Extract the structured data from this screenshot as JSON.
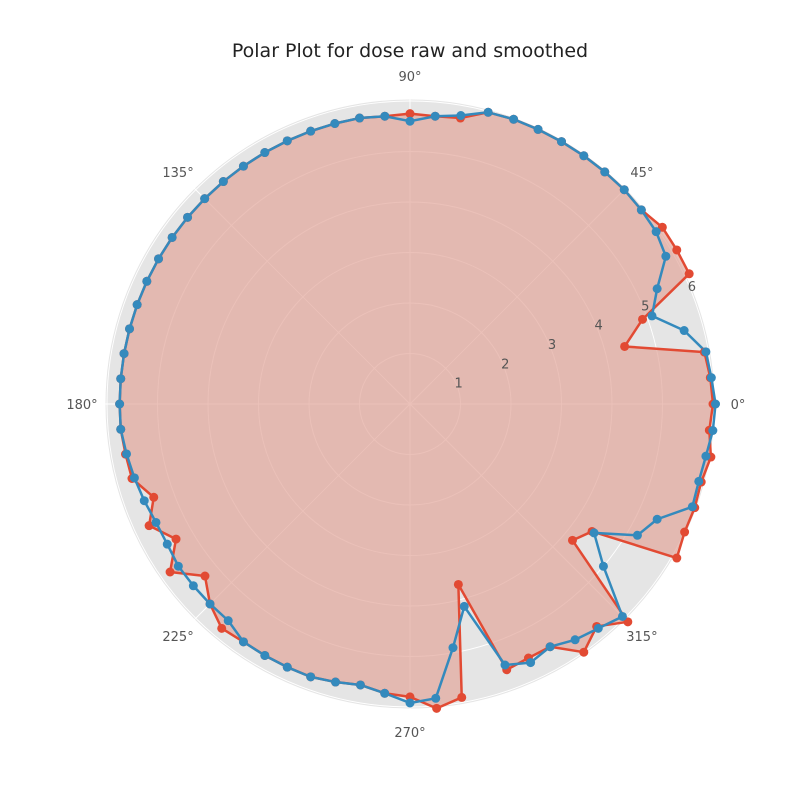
{
  "chart_data": {
    "type": "polar-line",
    "title": "Polar Plot for dose raw and smoothed",
    "theta_unit": "degrees",
    "theta_ticks": [
      "0°",
      "45°",
      "90°",
      "135°",
      "180°",
      "225°",
      "270°",
      "315°"
    ],
    "r_ticks": [
      "1",
      "2",
      "3",
      "4",
      "5",
      "6"
    ],
    "r_lim": [
      0,
      6
    ],
    "grid": true,
    "colors": {
      "background": "#e5e5e5",
      "grid": "#ffffff",
      "fill": "#e2a79b",
      "raw": "#e24a33",
      "smoothed": "#348abd"
    },
    "series": [
      {
        "key": "raw",
        "marker": "circle",
        "fill": true,
        "theta": [
          0,
          5,
          10,
          15,
          20,
          25,
          30,
          35,
          40,
          45,
          50,
          55,
          60,
          65,
          70,
          75,
          80,
          85,
          90,
          95,
          100,
          105,
          110,
          115,
          120,
          125,
          130,
          135,
          140,
          145,
          150,
          155,
          160,
          165,
          170,
          175,
          180,
          185,
          190,
          195,
          200,
          205,
          210,
          215,
          220,
          225,
          230,
          235,
          240,
          245,
          250,
          255,
          260,
          265,
          270,
          275,
          280,
          285,
          290,
          295,
          300,
          305,
          310,
          315,
          320,
          325,
          330,
          335,
          340,
          345,
          350,
          355
        ],
        "r": [
          6.0,
          5.97,
          5.92,
          4.4,
          4.9,
          6.1,
          6.15,
          6.1,
          5.98,
          6.0,
          6.0,
          6.0,
          6.0,
          6.0,
          6.0,
          5.98,
          5.75,
          5.72,
          5.75,
          5.72,
          5.75,
          5.75,
          5.75,
          5.75,
          5.75,
          5.75,
          5.75,
          5.75,
          5.75,
          5.75,
          5.75,
          5.75,
          5.75,
          5.75,
          5.75,
          5.75,
          5.75,
          5.75,
          5.72,
          5.7,
          5.4,
          5.7,
          5.35,
          5.8,
          5.3,
          5.6,
          5.8,
          5.75,
          5.75,
          5.75,
          5.75,
          5.7,
          5.65,
          5.75,
          5.8,
          6.05,
          5.9,
          3.7,
          5.6,
          5.55,
          5.55,
          6.0,
          5.75,
          6.35,
          4.2,
          4.4,
          6.2,
          6.0,
          6.0,
          5.97,
          6.05,
          5.95
        ]
      },
      {
        "key": "smoothed",
        "marker": "circle",
        "fill": false,
        "theta": [
          0,
          5,
          10,
          15,
          20,
          25,
          30,
          35,
          40,
          45,
          50,
          55,
          60,
          65,
          70,
          75,
          80,
          85,
          90,
          95,
          100,
          105,
          110,
          115,
          120,
          125,
          130,
          135,
          140,
          145,
          150,
          155,
          160,
          165,
          170,
          175,
          180,
          185,
          190,
          195,
          200,
          205,
          210,
          215,
          220,
          225,
          230,
          235,
          240,
          245,
          250,
          255,
          260,
          265,
          270,
          275,
          280,
          285,
          290,
          295,
          300,
          305,
          310,
          315,
          320,
          325,
          330,
          335,
          340,
          345,
          350,
          355
        ],
        "r": [
          6.05,
          5.99,
          5.95,
          5.62,
          5.1,
          5.4,
          5.85,
          5.95,
          5.98,
          6.0,
          6.0,
          6.0,
          6.0,
          6.0,
          6.0,
          5.98,
          5.8,
          5.72,
          5.6,
          5.72,
          5.75,
          5.75,
          5.75,
          5.75,
          5.75,
          5.75,
          5.75,
          5.75,
          5.75,
          5.75,
          5.75,
          5.75,
          5.75,
          5.75,
          5.75,
          5.75,
          5.75,
          5.75,
          5.7,
          5.65,
          5.6,
          5.55,
          5.55,
          5.6,
          5.6,
          5.6,
          5.6,
          5.75,
          5.75,
          5.75,
          5.75,
          5.7,
          5.65,
          5.75,
          5.92,
          5.85,
          4.9,
          4.15,
          5.5,
          5.65,
          5.55,
          5.7,
          5.8,
          5.95,
          5.0,
          4.45,
          5.2,
          5.4,
          5.95,
          5.92,
          5.95,
          6.02
        ]
      }
    ]
  }
}
